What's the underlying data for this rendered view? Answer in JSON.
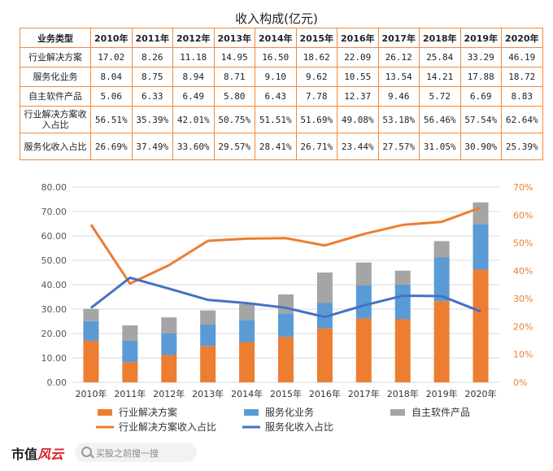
{
  "chart_data": {
    "type": "bar",
    "title": "收入构成(亿元)",
    "categories": [
      "2010年",
      "2011年",
      "2012年",
      "2013年",
      "2014年",
      "2015年",
      "2016年",
      "2017年",
      "2018年",
      "2019年",
      "2020年"
    ],
    "series": [
      {
        "name": "行业解决方案",
        "type": "stacked-bar",
        "axis": "left",
        "color": "#ed7d31",
        "values": [
          17.02,
          8.26,
          11.18,
          14.95,
          16.5,
          18.62,
          22.09,
          26.12,
          25.84,
          33.29,
          46.19
        ]
      },
      {
        "name": "服务化业务",
        "type": "stacked-bar",
        "axis": "left",
        "color": "#5b9bd5",
        "values": [
          8.04,
          8.75,
          8.94,
          8.71,
          9.1,
          9.62,
          10.55,
          13.54,
          14.21,
          17.88,
          18.72
        ]
      },
      {
        "name": "自主软件产品",
        "type": "stacked-bar",
        "axis": "left",
        "color": "#a5a5a5",
        "values": [
          5.06,
          6.33,
          6.49,
          5.8,
          6.43,
          7.78,
          12.37,
          9.46,
          5.72,
          6.69,
          8.83
        ]
      },
      {
        "name": "行业解决方案收入占比",
        "type": "line",
        "axis": "right",
        "color": "#ed7d31",
        "values": [
          56.51,
          35.39,
          42.01,
          50.75,
          51.51,
          51.69,
          49.08,
          53.18,
          56.46,
          57.54,
          62.64
        ]
      },
      {
        "name": "服务化收入占比",
        "type": "line",
        "axis": "right",
        "color": "#4472c4",
        "values": [
          26.69,
          37.49,
          33.6,
          29.57,
          28.41,
          26.71,
          23.44,
          27.57,
          31.05,
          30.9,
          25.39
        ]
      }
    ],
    "table": {
      "header": [
        "业务类型",
        "2010年",
        "2011年",
        "2012年",
        "2013年",
        "2014年",
        "2015年",
        "2016年",
        "2017年",
        "2018年",
        "2019年",
        "2020年"
      ],
      "rows": [
        {
          "label": "行业解决方案",
          "cells": [
            "17.02",
            "8.26",
            "11.18",
            "14.95",
            "16.50",
            "18.62",
            "22.09",
            "26.12",
            "25.84",
            "33.29",
            "46.19"
          ]
        },
        {
          "label": "服务化业务",
          "cells": [
            "8.04",
            "8.75",
            "8.94",
            "8.71",
            "9.10",
            "9.62",
            "10.55",
            "13.54",
            "14.21",
            "17.88",
            "18.72"
          ]
        },
        {
          "label": "自主软件产品",
          "cells": [
            "5.06",
            "6.33",
            "6.49",
            "5.80",
            "6.43",
            "7.78",
            "12.37",
            "9.46",
            "5.72",
            "6.69",
            "8.83"
          ]
        },
        {
          "label": "行业解决方案收入占比",
          "cells": [
            "56.51%",
            "35.39%",
            "42.01%",
            "50.75%",
            "51.51%",
            "51.69%",
            "49.08%",
            "53.18%",
            "56.46%",
            "57.54%",
            "62.64%"
          ]
        },
        {
          "label": "服务化收入占比",
          "cells": [
            "26.69%",
            "37.49%",
            "33.60%",
            "29.57%",
            "28.41%",
            "26.71%",
            "23.44%",
            "27.57%",
            "31.05%",
            "30.90%",
            "25.39%"
          ]
        }
      ]
    },
    "ylim": [
      0,
      80
    ],
    "yticks": [
      "0.00",
      "10.00",
      "20.00",
      "30.00",
      "40.00",
      "50.00",
      "60.00",
      "70.00",
      "80.00"
    ],
    "y2lim": [
      0,
      70
    ],
    "y2ticks": [
      "0%",
      "10%",
      "20%",
      "30%",
      "40%",
      "50%",
      "60%",
      "70%"
    ],
    "grid": true,
    "legend_position": "bottom"
  },
  "footer": {
    "brand_text": "市值",
    "brand_logo_text": "风云",
    "search_placeholder": "买股之前搜一搜"
  }
}
